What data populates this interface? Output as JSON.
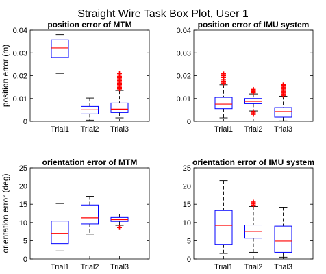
{
  "figure": {
    "title": "Straight Wire Task Box Plot, User 1"
  },
  "chart_data": [
    {
      "type": "box",
      "title": "position error of MTM",
      "ylabel": "position error (m)",
      "ylim": [
        0,
        0.04
      ],
      "yticks": [
        "0",
        "0.01",
        "0.02",
        "0.03",
        "0.04"
      ],
      "categories": [
        "Trial1",
        "Trial2",
        "Trial3"
      ],
      "boxes": [
        {
          "min": 0.021,
          "q1": 0.028,
          "median": 0.0322,
          "q3": 0.0357,
          "max": 0.038,
          "outliers": []
        },
        {
          "min": 0.0005,
          "q1": 0.0032,
          "median": 0.005,
          "q3": 0.0065,
          "max": 0.0102,
          "outliers": []
        },
        {
          "min": 0.0015,
          "q1": 0.0038,
          "median": 0.0053,
          "q3": 0.008,
          "max": 0.0135,
          "outliers": [
            0.0142,
            0.0148,
            0.0154,
            0.016,
            0.0166,
            0.0172,
            0.0178,
            0.0184,
            0.019,
            0.0196,
            0.0203,
            0.021
          ]
        }
      ]
    },
    {
      "type": "box",
      "title": "position error of IMU system",
      "ylabel": "",
      "ylim": [
        0,
        0.04
      ],
      "yticks": [
        "0",
        "0.01",
        "0.02",
        "0.03",
        "0.04"
      ],
      "categories": [
        "Trial1",
        "Trial2",
        "Trial3"
      ],
      "boxes": [
        {
          "min": 0.0015,
          "q1": 0.0055,
          "median": 0.0075,
          "q3": 0.0105,
          "max": 0.016,
          "outliers": [
            0.0168,
            0.0176,
            0.0184,
            0.0192,
            0.02,
            0.0208
          ]
        },
        {
          "min": 0.0045,
          "q1": 0.0077,
          "median": 0.0087,
          "q3": 0.01,
          "max": 0.012,
          "outliers": [
            0.003,
            0.0036,
            0.0042,
            0.0125,
            0.013,
            0.0135,
            0.014
          ]
        },
        {
          "min": 0.0002,
          "q1": 0.0018,
          "median": 0.0042,
          "q3": 0.006,
          "max": 0.011,
          "outliers": [
            0.0114,
            0.012,
            0.0126,
            0.0132,
            0.0138,
            0.0144,
            0.015,
            0.0156,
            0.016
          ]
        }
      ]
    },
    {
      "type": "box",
      "title": "orientation error of MTM",
      "ylabel": "orientation error (deg)",
      "ylim": [
        0,
        25
      ],
      "yticks": [
        "0",
        "5",
        "10",
        "15",
        "20",
        "25"
      ],
      "categories": [
        "Trial1",
        "Trial2",
        "Trial3"
      ],
      "boxes": [
        {
          "min": 2.2,
          "q1": 4.2,
          "median": 7.0,
          "q3": 10.4,
          "max": 15.2,
          "outliers": []
        },
        {
          "min": 6.8,
          "q1": 9.6,
          "median": 11.3,
          "q3": 14.8,
          "max": 17.2,
          "outliers": []
        },
        {
          "min": 9.2,
          "q1": 10.3,
          "median": 10.8,
          "q3": 11.4,
          "max": 12.3,
          "outliers": [
            8.6
          ]
        }
      ]
    },
    {
      "type": "box",
      "title": "orientation error of IMU system",
      "ylabel": "",
      "ylim": [
        0,
        25
      ],
      "yticks": [
        "0",
        "5",
        "10",
        "15",
        "20",
        "25"
      ],
      "categories": [
        "Trial1",
        "Trial2",
        "Trial3"
      ],
      "boxes": [
        {
          "min": 1.5,
          "q1": 4.0,
          "median": 9.2,
          "q3": 13.3,
          "max": 21.5,
          "outliers": []
        },
        {
          "min": 1.8,
          "q1": 5.7,
          "median": 7.5,
          "q3": 9.3,
          "max": 14.4,
          "outliers": [
            14.8,
            15.2,
            15.6
          ]
        },
        {
          "min": 0.5,
          "q1": 1.8,
          "median": 4.9,
          "q3": 9.0,
          "max": 14.2,
          "outliers": []
        }
      ]
    }
  ]
}
